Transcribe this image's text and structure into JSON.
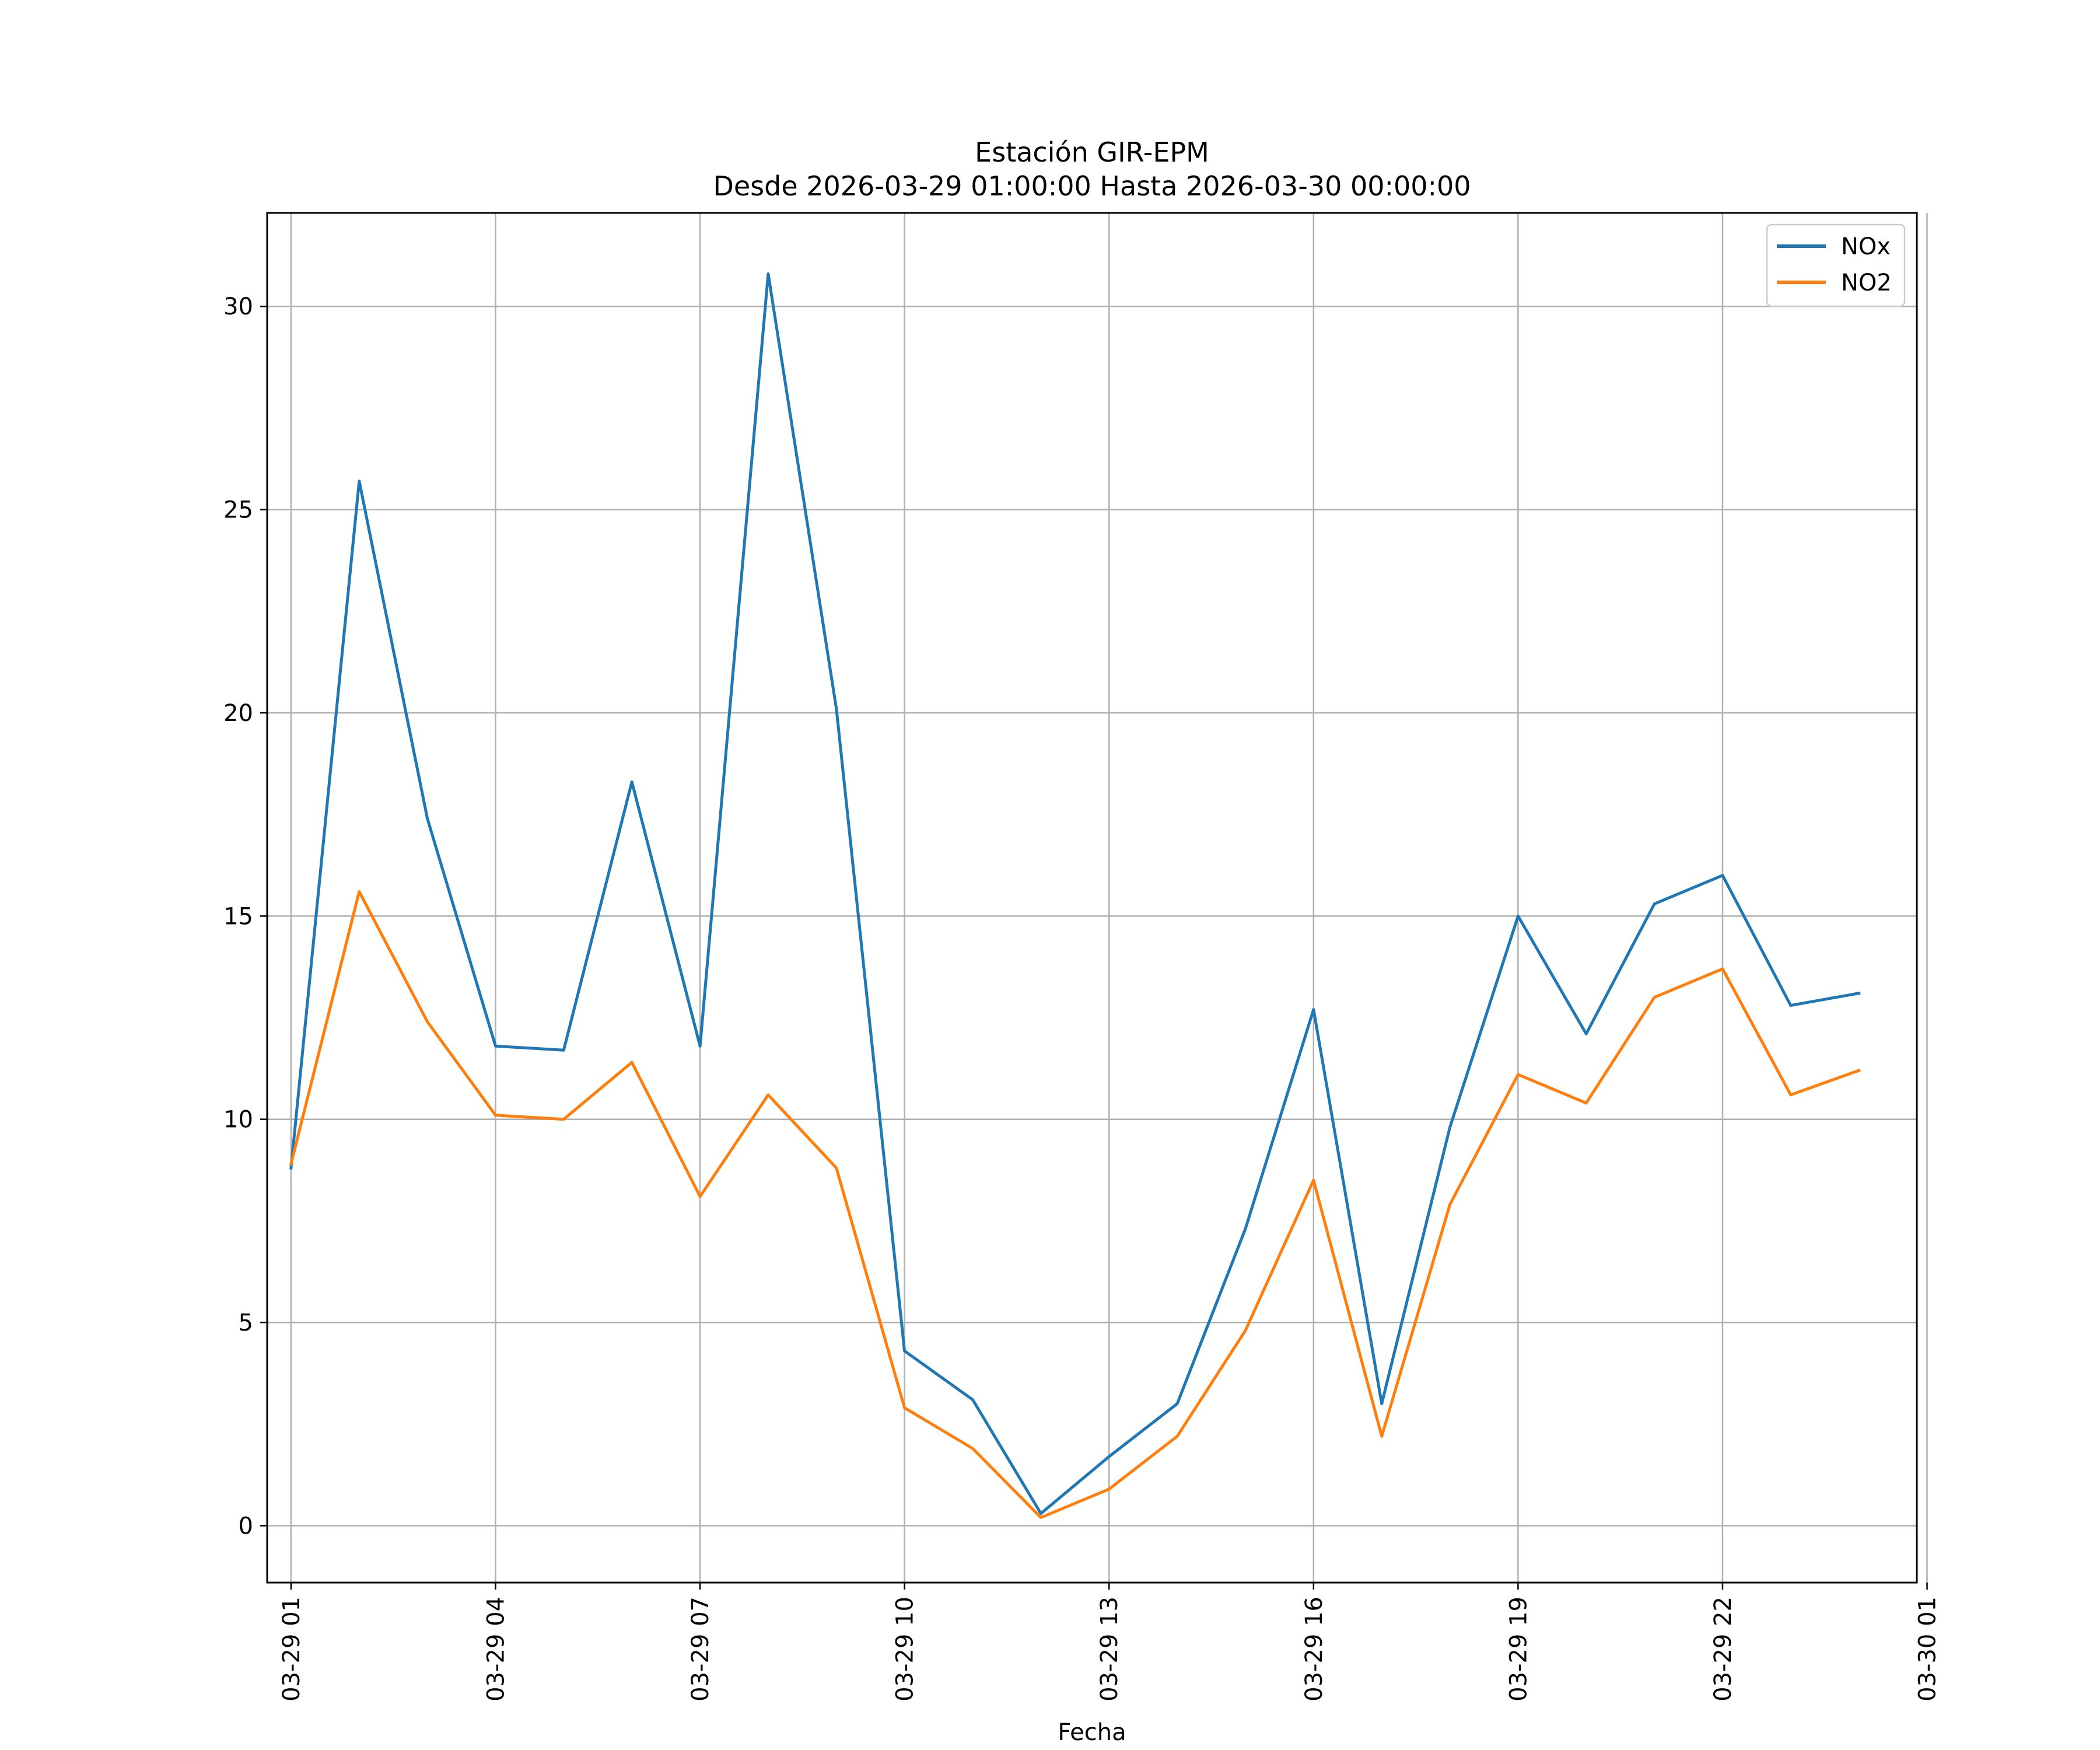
{
  "chart_data": {
    "type": "line",
    "title": "Estación GIR-EPM",
    "subtitle": "Desde 2026-03-29 01:00:00 Hasta 2026-03-30 00:00:00",
    "xlabel": "Fecha",
    "ylabel": "",
    "xlim": [
      0.65,
      24.85
    ],
    "ylim": [
      -1.4,
      32.3
    ],
    "x_ticks": [
      {
        "value": 1,
        "label": "03-29 01"
      },
      {
        "value": 4,
        "label": "03-29 04"
      },
      {
        "value": 7,
        "label": "03-29 07"
      },
      {
        "value": 10,
        "label": "03-29 10"
      },
      {
        "value": 13,
        "label": "03-29 13"
      },
      {
        "value": 16,
        "label": "03-29 16"
      },
      {
        "value": 19,
        "label": "03-29 19"
      },
      {
        "value": 22,
        "label": "03-29 22"
      },
      {
        "value": 25,
        "label": "03-30 01"
      }
    ],
    "y_ticks": [
      0,
      5,
      10,
      15,
      20,
      25,
      30
    ],
    "grid": true,
    "legend_position": "top-right",
    "x": [
      1,
      2,
      3,
      4,
      5,
      6,
      7,
      8,
      9,
      10,
      11,
      12,
      13,
      14,
      15,
      16,
      17,
      18,
      19,
      20,
      21,
      22,
      23,
      24
    ],
    "series": [
      {
        "name": "NOx",
        "color": "#1f77b4",
        "values": [
          8.8,
          25.7,
          17.4,
          11.8,
          11.7,
          18.3,
          11.8,
          30.8,
          20.1,
          4.3,
          3.1,
          0.3,
          1.7,
          3.0,
          7.3,
          12.7,
          3.0,
          9.8,
          15.0,
          12.1,
          15.3,
          16.0,
          12.8,
          13.1
        ]
      },
      {
        "name": "NO2",
        "color": "#ff7f0e",
        "values": [
          8.9,
          15.6,
          12.4,
          10.1,
          10.0,
          11.4,
          8.1,
          10.6,
          8.8,
          2.9,
          1.9,
          0.2,
          0.9,
          2.2,
          4.8,
          8.5,
          2.2,
          7.9,
          11.1,
          10.4,
          13.0,
          13.7,
          10.6,
          11.2
        ]
      }
    ]
  }
}
